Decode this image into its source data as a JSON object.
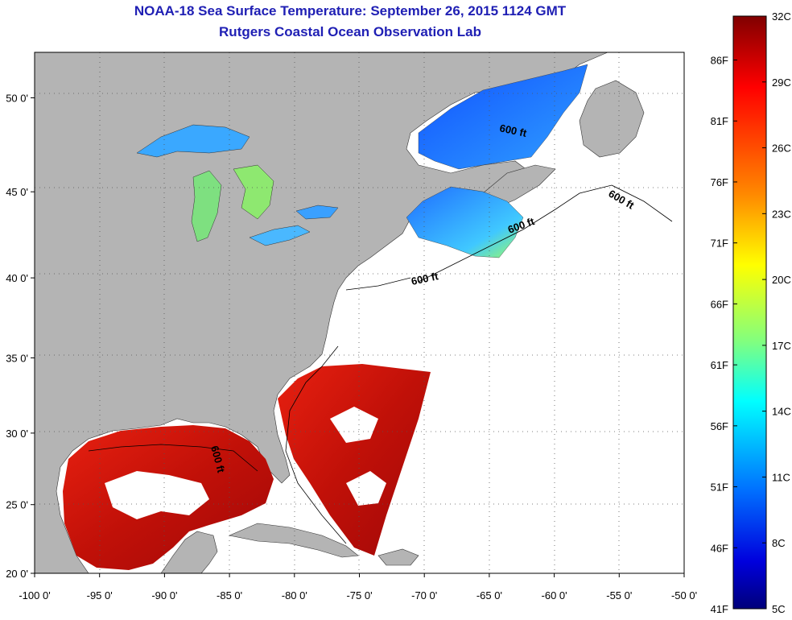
{
  "header": {
    "title": "NOAA-18 Sea Surface Temperature:  September 26, 2015 1124 GMT",
    "subtitle": "Rutgers Coastal Ocean Observation Lab"
  },
  "map": {
    "x_ticks": [
      {
        "lon": -100,
        "label": "-100 0'"
      },
      {
        "lon": -95,
        "label": "-95 0'"
      },
      {
        "lon": -90,
        "label": "-90 0'"
      },
      {
        "lon": -85,
        "label": "-85 0'"
      },
      {
        "lon": -80,
        "label": "-80 0'"
      },
      {
        "lon": -75,
        "label": "-75 0'"
      },
      {
        "lon": -70,
        "label": "-70 0'"
      },
      {
        "lon": -65,
        "label": "-65 0'"
      },
      {
        "lon": -60,
        "label": "-60 0'"
      },
      {
        "lon": -55,
        "label": "-55 0'"
      },
      {
        "lon": -50,
        "label": "-50 0'"
      }
    ],
    "y_ticks": [
      {
        "lat": 50,
        "label": "50 0'"
      },
      {
        "lat": 45,
        "label": "45 0'"
      },
      {
        "lat": 40,
        "label": "40 0'"
      },
      {
        "lat": 35,
        "label": "35 0'"
      },
      {
        "lat": 30,
        "label": "30 0'"
      },
      {
        "lat": 25,
        "label": "25 0'"
      },
      {
        "lat": 20,
        "label": "20 0'"
      }
    ],
    "isobath_label": "600 ft",
    "land_color": "#b4b4b4",
    "ocean_color": "#ffffff"
  },
  "colorbar": {
    "celsius": [
      {
        "value": 32,
        "label": "32C"
      },
      {
        "value": 29,
        "label": "29C"
      },
      {
        "value": 26,
        "label": "26C"
      },
      {
        "value": 23,
        "label": "23C"
      },
      {
        "value": 20,
        "label": "20C"
      },
      {
        "value": 17,
        "label": "17C"
      },
      {
        "value": 14,
        "label": "14C"
      },
      {
        "value": 11,
        "label": "11C"
      },
      {
        "value": 8,
        "label": "8C"
      },
      {
        "value": 5,
        "label": "5C"
      }
    ],
    "fahrenheit": [
      {
        "value": 86,
        "label": "86F"
      },
      {
        "value": 81,
        "label": "81F"
      },
      {
        "value": 76,
        "label": "76F"
      },
      {
        "value": 71,
        "label": "71F"
      },
      {
        "value": 66,
        "label": "66F"
      },
      {
        "value": 61,
        "label": "61F"
      },
      {
        "value": 56,
        "label": "56F"
      },
      {
        "value": 51,
        "label": "51F"
      },
      {
        "value": 46,
        "label": "46F"
      },
      {
        "value": 41,
        "label": "41F"
      }
    ],
    "stops": [
      "#8b0000",
      "#ff0000",
      "#ff9900",
      "#ffff00",
      "#66ff66",
      "#00ffff",
      "#0066ff",
      "#0000aa",
      "#00008b"
    ]
  }
}
